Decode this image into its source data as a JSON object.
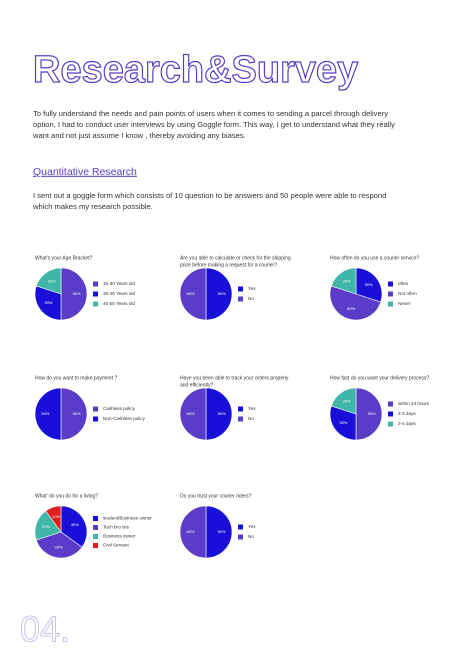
{
  "header": {
    "title": "Research&Survey"
  },
  "intro": [
    "To fully understand the needs and pain points of users when it comes to sending a parcel through delivery",
    "option, I had to conduct user interviews by using Goggle form. This way, I get to understand what they really",
    "want and not just assume I know , thereby avoiding any biases."
  ],
  "section": {
    "heading": "Quantitative Research",
    "text": [
      "I sent out a goggle form which consists of 10 question to be answers and 50 people were able to respond",
      "which makes my research possible."
    ]
  },
  "chart_data": [
    {
      "type": "pie",
      "title": [
        "What's your Age Bracket?"
      ],
      "categories": [
        "15-30 Years old",
        "30-45 Years old",
        "45-55 Years old"
      ],
      "values": [
        50,
        30,
        20
      ],
      "value_labels": [
        "50%",
        "30%",
        "20%"
      ],
      "colors": [
        "#5b3cc8",
        "#1a0fd8",
        "#3fb6a8"
      ]
    },
    {
      "type": "pie",
      "title": [
        "Are you able to calculate or check for the shipping",
        "price before making a request for a courier?"
      ],
      "categories": [
        "Yes",
        "No"
      ],
      "values": [
        50,
        50
      ],
      "value_labels": [
        "50%",
        "50%"
      ],
      "colors": [
        "#1a0fd8",
        "#5b3cc8"
      ]
    },
    {
      "type": "pie",
      "title": [
        "How often do you use a courier service?"
      ],
      "categories": [
        "often",
        "Not often",
        "Never"
      ],
      "values": [
        30,
        50,
        20
      ],
      "value_labels": [
        "30%",
        "50%",
        "20%"
      ],
      "colors": [
        "#1a0fd8",
        "#5b3cc8",
        "#3fb6a8"
      ]
    },
    {
      "type": "pie",
      "title": [
        "How do you want to make payment ?"
      ],
      "categories": [
        "Cashless policy",
        "Non-Cashless policy"
      ],
      "values": [
        50,
        50
      ],
      "value_labels": [
        "50%",
        "50%"
      ],
      "colors": [
        "#5b3cc8",
        "#1a0fd8"
      ]
    },
    {
      "type": "pie",
      "title": [
        "Have you been able to track your orders properly",
        "and efficiently?"
      ],
      "categories": [
        "Yes",
        "No"
      ],
      "values": [
        50,
        50
      ],
      "value_labels": [
        "50%",
        "50%"
      ],
      "colors": [
        "#1a0fd8",
        "#5b3cc8"
      ]
    },
    {
      "type": "pie",
      "title": [
        "How fast do you want your delivery process?"
      ],
      "categories": [
        "within 24 hours",
        "2-3 days",
        "3-4 days"
      ],
      "values": [
        50,
        30,
        20
      ],
      "value_labels": [
        "50%",
        "30%",
        "20%"
      ],
      "colors": [
        "#5b3cc8",
        "#1a0fd8",
        "#3fb6a8"
      ]
    },
    {
      "type": "pie",
      "title": [
        "What' do you do for a living?"
      ],
      "categories": [
        "student/Business owner",
        "Tech bro /sis",
        "Business owner",
        "Civil Servant"
      ],
      "values": [
        35,
        35,
        20,
        10
      ],
      "value_labels": [
        "35%",
        "35%",
        "20%",
        "10%"
      ],
      "colors": [
        "#1a0fd8",
        "#5b3cc8",
        "#3fb6a8",
        "#e01e1e"
      ]
    },
    {
      "type": "pie",
      "title": [
        "Do you trust your courier riders?"
      ],
      "categories": [
        "Yes",
        "No"
      ],
      "values": [
        50,
        50
      ],
      "value_labels": [
        "50%",
        "50%"
      ],
      "colors": [
        "#1a0fd8",
        "#5b3cc8"
      ]
    }
  ],
  "footer": {
    "page": "04."
  }
}
